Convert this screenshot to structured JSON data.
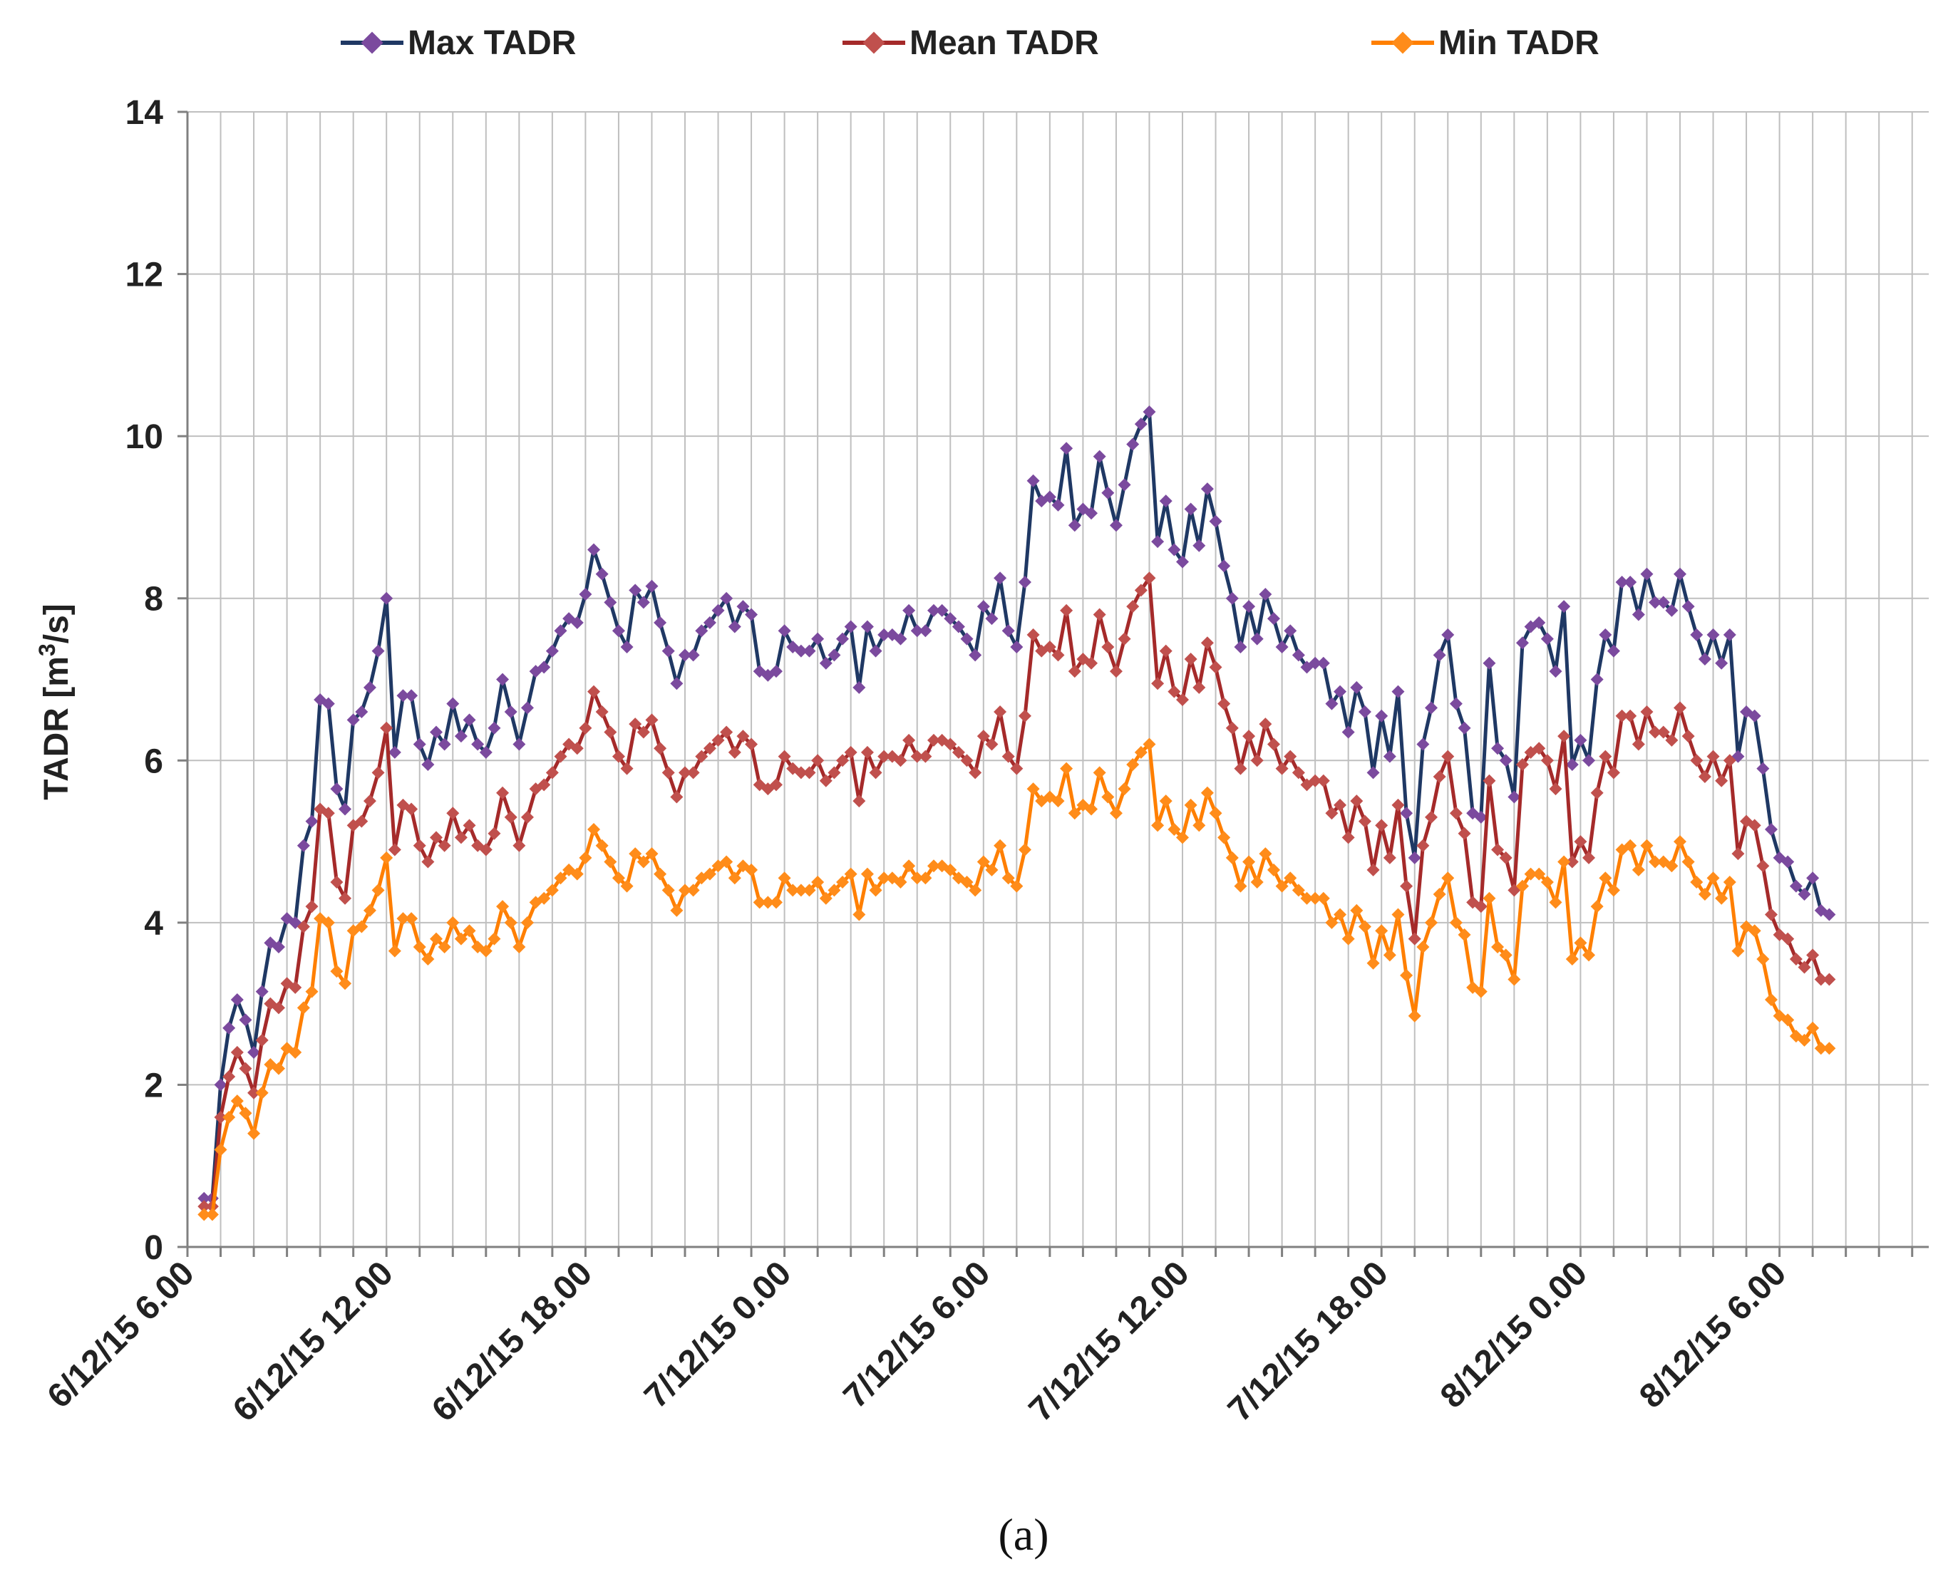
{
  "chart_data": {
    "type": "line",
    "title": "",
    "caption": "(a)",
    "ylabel": "TADR [m³/s]",
    "ylabel_prefix": "TADR [m",
    "ylabel_sup": "3",
    "ylabel_suffix": "/s]",
    "xlabel": "",
    "ylim": [
      0,
      14
    ],
    "yticks": [
      0,
      2,
      4,
      6,
      8,
      10,
      12,
      14
    ],
    "x_unit": "hours since 6/12/15 6.00",
    "xlim": [
      0,
      52.5
    ],
    "xtick_positions": [
      0,
      6,
      12,
      18,
      24,
      30,
      36,
      42,
      48
    ],
    "xtick_labels": [
      "6/12/15 6.00",
      "6/12/15 12.00",
      "6/12/15 18.00",
      "7/12/15 0.00",
      "7/12/15 6.00",
      "7/12/15 12.00",
      "7/12/15 18.00",
      "8/12/15 0.00",
      "8/12/15 6.00"
    ],
    "x_start": 0.5,
    "x_step": 0.25,
    "legend_position": "top",
    "series": [
      {
        "name": "Max TADR",
        "color": "#1f3864",
        "marker_color": "#7b4a9e",
        "values": [
          0.6,
          0.6,
          2.0,
          2.7,
          3.05,
          2.8,
          2.4,
          3.15,
          3.75,
          3.7,
          4.05,
          4.0,
          4.95,
          5.25,
          6.75,
          6.7,
          5.65,
          5.4,
          6.5,
          6.6,
          6.9,
          7.35,
          8.0,
          6.1,
          6.8,
          6.8,
          6.2,
          5.95,
          6.35,
          6.2,
          6.7,
          6.3,
          6.5,
          6.2,
          6.1,
          6.4,
          7.0,
          6.6,
          6.2,
          6.65,
          7.1,
          7.15,
          7.35,
          7.6,
          7.75,
          7.7,
          8.05,
          8.6,
          8.3,
          7.95,
          7.6,
          7.4,
          8.1,
          7.95,
          8.15,
          7.7,
          7.35,
          6.95,
          7.3,
          7.3,
          7.6,
          7.7,
          7.85,
          8.0,
          7.65,
          7.9,
          7.8,
          7.1,
          7.05,
          7.1,
          7.6,
          7.4,
          7.35,
          7.35,
          7.5,
          7.2,
          7.3,
          7.5,
          7.65,
          6.9,
          7.65,
          7.35,
          7.55,
          7.55,
          7.5,
          7.85,
          7.6,
          7.6,
          7.85,
          7.85,
          7.75,
          7.65,
          7.5,
          7.3,
          7.9,
          7.75,
          8.25,
          7.6,
          7.4,
          8.2,
          9.45,
          9.2,
          9.25,
          9.15,
          9.85,
          8.9,
          9.1,
          9.05,
          9.75,
          9.3,
          8.9,
          9.4,
          9.9,
          10.15,
          10.3,
          8.7,
          9.2,
          8.6,
          8.45,
          9.1,
          8.65,
          9.35,
          8.95,
          8.4,
          8.0,
          7.4,
          7.9,
          7.5,
          8.05,
          7.75,
          7.4,
          7.6,
          7.3,
          7.15,
          7.2,
          7.2,
          6.7,
          6.85,
          6.35,
          6.9,
          6.6,
          5.85,
          6.55,
          6.05,
          6.85,
          5.35,
          4.8,
          6.2,
          6.65,
          7.3,
          7.55,
          6.7,
          6.4,
          5.35,
          5.3,
          7.2,
          6.15,
          6.0,
          5.55,
          7.45,
          7.65,
          7.7,
          7.5,
          7.1,
          7.9,
          5.95,
          6.25,
          6.0,
          7.0,
          7.55,
          7.35,
          8.2,
          8.2,
          7.8,
          8.3,
          7.95,
          7.95,
          7.85,
          8.3,
          7.9,
          7.55,
          7.25,
          7.55,
          7.2,
          7.55,
          6.05,
          6.6,
          6.55,
          5.9,
          5.15,
          4.8,
          4.75,
          4.45,
          4.35,
          4.55,
          4.15,
          4.1
        ]
      },
      {
        "name": "Mean TADR",
        "color": "#a52a2a",
        "marker_color": "#c0504d",
        "values": [
          0.5,
          0.5,
          1.6,
          2.1,
          2.4,
          2.2,
          1.9,
          2.55,
          3.0,
          2.95,
          3.25,
          3.2,
          3.95,
          4.2,
          5.4,
          5.35,
          4.5,
          4.3,
          5.2,
          5.25,
          5.5,
          5.85,
          6.4,
          4.9,
          5.45,
          5.4,
          4.95,
          4.75,
          5.05,
          4.95,
          5.35,
          5.05,
          5.2,
          4.95,
          4.9,
          5.1,
          5.6,
          5.3,
          4.95,
          5.3,
          5.65,
          5.7,
          5.85,
          6.05,
          6.2,
          6.15,
          6.4,
          6.85,
          6.6,
          6.35,
          6.05,
          5.9,
          6.45,
          6.35,
          6.5,
          6.15,
          5.85,
          5.55,
          5.85,
          5.85,
          6.05,
          6.15,
          6.25,
          6.35,
          6.1,
          6.3,
          6.2,
          5.7,
          5.65,
          5.7,
          6.05,
          5.9,
          5.85,
          5.85,
          6.0,
          5.75,
          5.85,
          6.0,
          6.1,
          5.5,
          6.1,
          5.85,
          6.05,
          6.05,
          6.0,
          6.25,
          6.05,
          6.05,
          6.25,
          6.25,
          6.2,
          6.1,
          6.0,
          5.85,
          6.3,
          6.2,
          6.6,
          6.05,
          5.9,
          6.55,
          7.55,
          7.35,
          7.4,
          7.3,
          7.85,
          7.1,
          7.25,
          7.2,
          7.8,
          7.4,
          7.1,
          7.5,
          7.9,
          8.1,
          8.25,
          6.95,
          7.35,
          6.85,
          6.75,
          7.25,
          6.9,
          7.45,
          7.15,
          6.7,
          6.4,
          5.9,
          6.3,
          6.0,
          6.45,
          6.2,
          5.9,
          6.05,
          5.85,
          5.7,
          5.75,
          5.75,
          5.35,
          5.45,
          5.05,
          5.5,
          5.25,
          4.65,
          5.2,
          4.8,
          5.45,
          4.45,
          3.8,
          4.95,
          5.3,
          5.8,
          6.05,
          5.35,
          5.1,
          4.25,
          4.2,
          5.75,
          4.9,
          4.8,
          4.4,
          5.95,
          6.1,
          6.15,
          6.0,
          5.65,
          6.3,
          4.75,
          5.0,
          4.8,
          5.6,
          6.05,
          5.85,
          6.55,
          6.55,
          6.2,
          6.6,
          6.35,
          6.35,
          6.25,
          6.65,
          6.3,
          6.0,
          5.8,
          6.05,
          5.75,
          6.0,
          4.85,
          5.25,
          5.2,
          4.7,
          4.1,
          3.85,
          3.8,
          3.55,
          3.45,
          3.6,
          3.3,
          3.3
        ]
      },
      {
        "name": "Min TADR",
        "color": "#ff7f00",
        "marker_color": "#ff8c1a",
        "values": [
          0.4,
          0.4,
          1.2,
          1.6,
          1.8,
          1.65,
          1.4,
          1.9,
          2.25,
          2.2,
          2.45,
          2.4,
          2.95,
          3.15,
          4.05,
          4.0,
          3.4,
          3.25,
          3.9,
          3.95,
          4.15,
          4.4,
          4.8,
          3.65,
          4.05,
          4.05,
          3.7,
          3.55,
          3.8,
          3.7,
          4.0,
          3.8,
          3.9,
          3.7,
          3.65,
          3.8,
          4.2,
          4.0,
          3.7,
          4.0,
          4.25,
          4.3,
          4.4,
          4.55,
          4.65,
          4.6,
          4.8,
          5.15,
          4.95,
          4.75,
          4.55,
          4.45,
          4.85,
          4.75,
          4.85,
          4.6,
          4.4,
          4.15,
          4.4,
          4.4,
          4.55,
          4.6,
          4.7,
          4.75,
          4.55,
          4.7,
          4.65,
          4.25,
          4.25,
          4.25,
          4.55,
          4.4,
          4.4,
          4.4,
          4.5,
          4.3,
          4.4,
          4.5,
          4.6,
          4.1,
          4.6,
          4.4,
          4.55,
          4.55,
          4.5,
          4.7,
          4.55,
          4.55,
          4.7,
          4.7,
          4.65,
          4.55,
          4.5,
          4.4,
          4.75,
          4.65,
          4.95,
          4.55,
          4.45,
          4.9,
          5.65,
          5.5,
          5.55,
          5.5,
          5.9,
          5.35,
          5.45,
          5.4,
          5.85,
          5.55,
          5.35,
          5.65,
          5.95,
          6.1,
          6.2,
          5.2,
          5.5,
          5.15,
          5.05,
          5.45,
          5.2,
          5.6,
          5.35,
          5.05,
          4.8,
          4.45,
          4.75,
          4.5,
          4.85,
          4.65,
          4.45,
          4.55,
          4.4,
          4.3,
          4.3,
          4.3,
          4.0,
          4.1,
          3.8,
          4.15,
          3.95,
          3.5,
          3.9,
          3.6,
          4.1,
          3.35,
          2.85,
          3.7,
          4.0,
          4.35,
          4.55,
          4.0,
          3.85,
          3.2,
          3.15,
          4.3,
          3.7,
          3.6,
          3.3,
          4.45,
          4.6,
          4.6,
          4.5,
          4.25,
          4.75,
          3.55,
          3.75,
          3.6,
          4.2,
          4.55,
          4.4,
          4.9,
          4.95,
          4.65,
          4.95,
          4.75,
          4.75,
          4.7,
          5.0,
          4.75,
          4.5,
          4.35,
          4.55,
          4.3,
          4.5,
          3.65,
          3.95,
          3.9,
          3.55,
          3.05,
          2.85,
          2.8,
          2.6,
          2.55,
          2.7,
          2.45,
          2.45
        ]
      }
    ]
  }
}
